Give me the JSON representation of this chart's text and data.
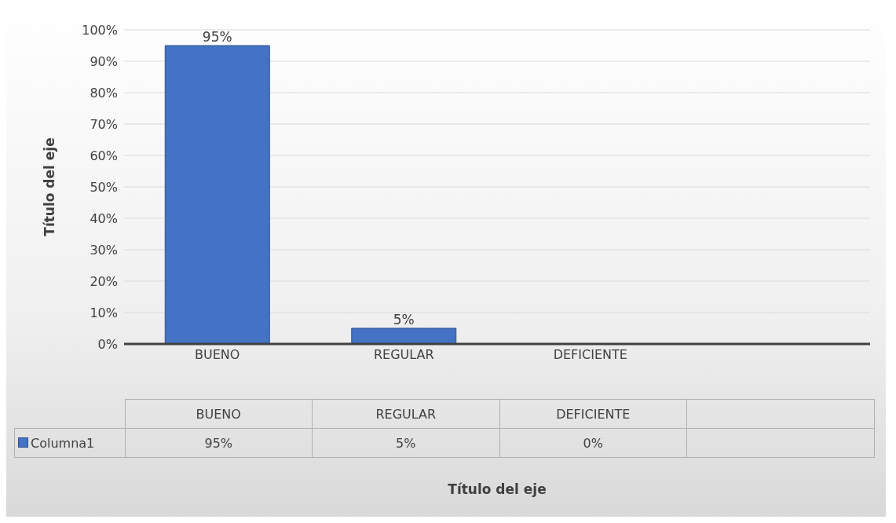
{
  "chart_data": {
    "type": "bar",
    "annotations": [
      "Título del eje"
    ],
    "ylabel": "Título del eje",
    "categories": [
      "BUENO",
      "REGULAR",
      "DEFICIENTE",
      null
    ],
    "series": [
      {
        "name": "Columna1",
        "color": "#4472c4",
        "values": [
          95,
          5,
          0,
          null
        ],
        "value_labels": [
          "95%",
          "5%",
          "0%",
          null
        ]
      }
    ],
    "ylim": [
      0,
      100
    ],
    "yticks": [
      {
        "value": 0,
        "label": "0%"
      },
      {
        "value": 10,
        "label": "10%"
      },
      {
        "value": 20,
        "label": "20%"
      },
      {
        "value": 30,
        "label": "30%"
      },
      {
        "value": 40,
        "label": "40%"
      },
      {
        "value": 50,
        "label": "50%"
      },
      {
        "value": 60,
        "label": "60%"
      },
      {
        "value": 70,
        "label": "70%"
      },
      {
        "value": 80,
        "label": "80%"
      },
      {
        "value": 90,
        "label": "90%"
      },
      {
        "value": 100,
        "label": "100%"
      }
    ],
    "grid": "y",
    "legend": "bottom"
  }
}
